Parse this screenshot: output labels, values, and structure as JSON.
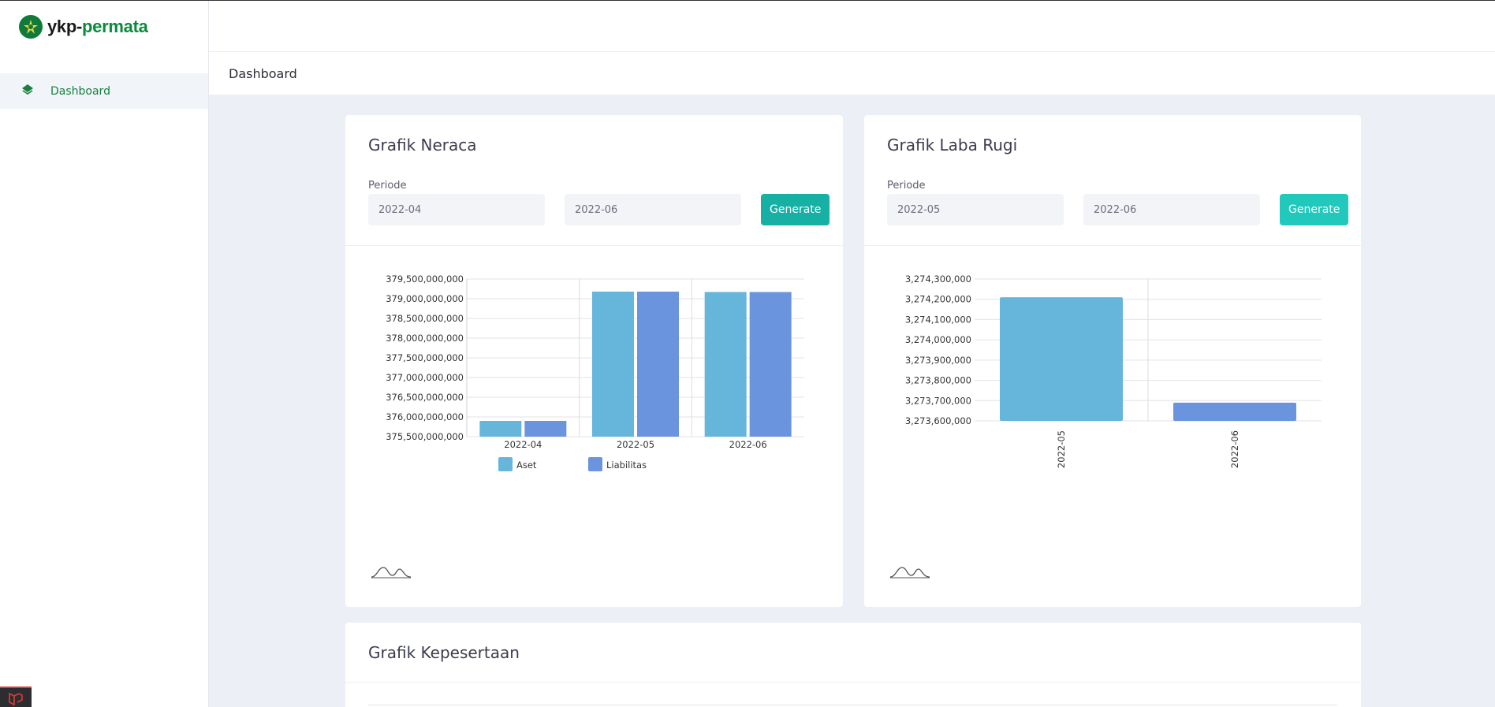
{
  "brand": {
    "name_part1": "ykp-",
    "name_part2": "permata"
  },
  "sidebar": {
    "items": [
      {
        "label": "Dashboard",
        "icon": "layers-icon"
      }
    ]
  },
  "header": {
    "title": "Dashboard"
  },
  "colors": {
    "primary_green": "#17803f",
    "teal": "#19b4a3",
    "aset": "#66b6db",
    "liabilitas": "#6a95de"
  },
  "neraca": {
    "title": "Grafik Neraca",
    "periode_label": "Periode",
    "from": "2022-04",
    "to": "2022-06",
    "button": "Generate"
  },
  "labarugi": {
    "title": "Grafik Laba Rugi",
    "periode_label": "Periode",
    "from": "2022-05",
    "to": "2022-06",
    "button": "Generate"
  },
  "kepesertaan": {
    "title": "Grafik Kepesertaan"
  },
  "chart_data": [
    {
      "type": "bar",
      "title": "",
      "categories": [
        "2022-04",
        "2022-05",
        "2022-06"
      ],
      "series": [
        {
          "name": "Aset",
          "values": [
            375900000000,
            379180000000,
            379170000000
          ]
        },
        {
          "name": "Liabilitas",
          "values": [
            375900000000,
            379180000000,
            379170000000
          ]
        }
      ],
      "ylim": [
        375500000000,
        379500000000
      ],
      "yticks": [
        "375,500,000,000",
        "376,000,000,000",
        "376,500,000,000",
        "377,000,000,000",
        "377,500,000,000",
        "378,000,000,000",
        "378,500,000,000",
        "379,000,000,000",
        "379,500,000,000"
      ],
      "legend": "bottom",
      "grid": true
    },
    {
      "type": "bar",
      "title": "",
      "categories": [
        "2022-05",
        "2022-06"
      ],
      "values": [
        3274210000,
        3273690000
      ],
      "ylim": [
        3273600000,
        3274300000
      ],
      "yticks": [
        "3,273,600,000",
        "3,273,700,000",
        "3,273,800,000",
        "3,273,900,000",
        "3,274,000,000",
        "3,274,100,000",
        "3,274,200,000",
        "3,274,300,000"
      ],
      "xlabel_rotation": "vertical",
      "grid": true
    }
  ]
}
